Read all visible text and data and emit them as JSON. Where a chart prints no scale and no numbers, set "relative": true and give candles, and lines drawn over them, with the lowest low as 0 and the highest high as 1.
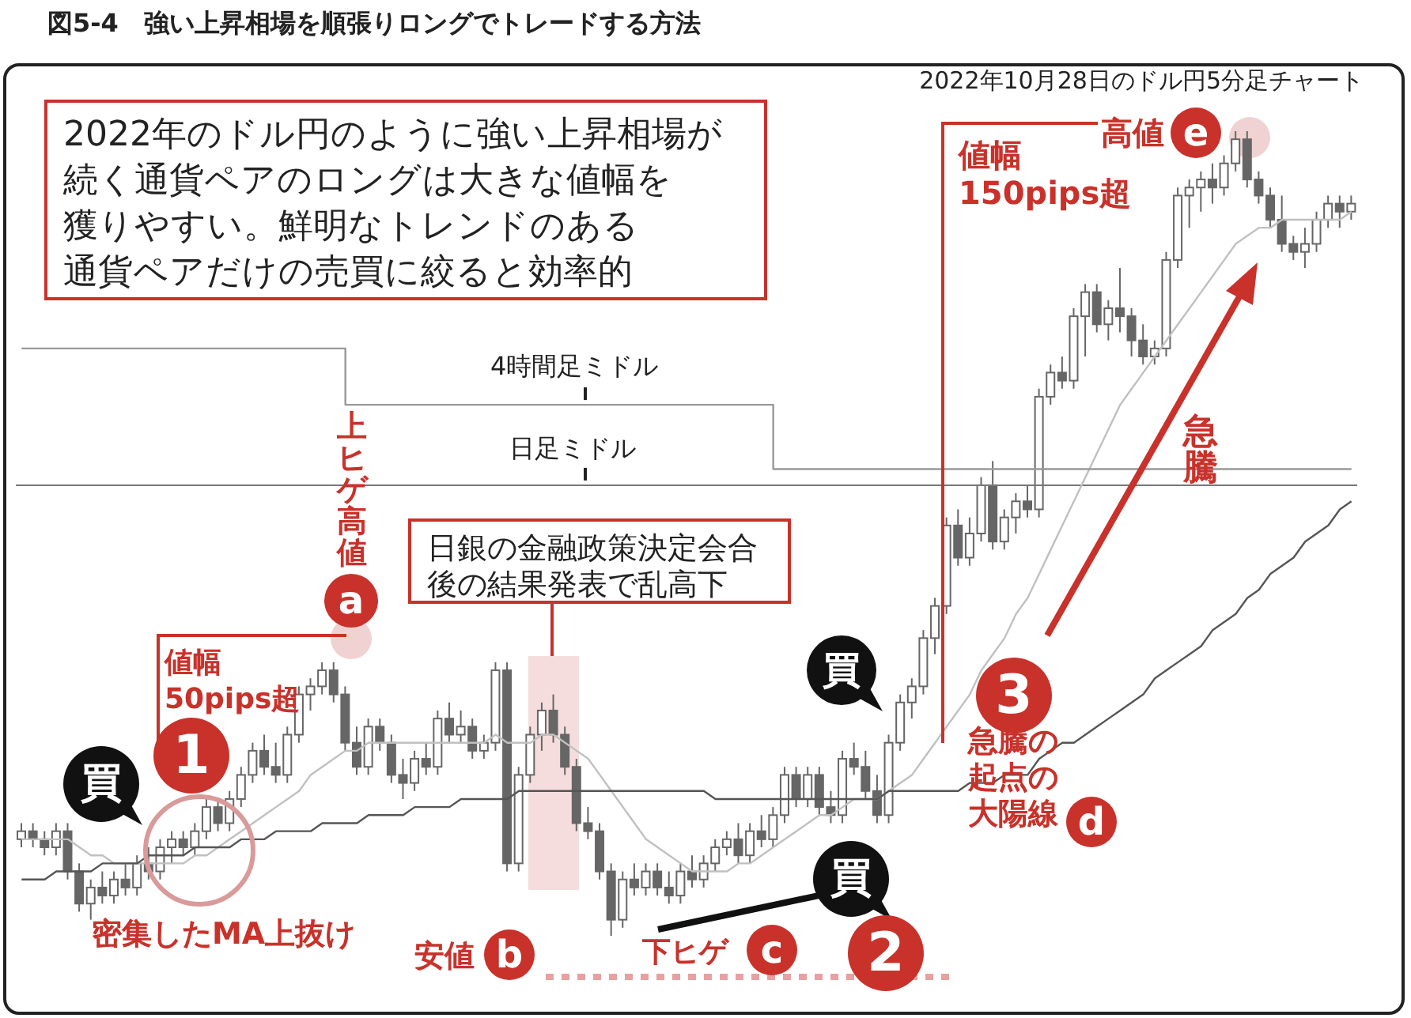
{
  "chart_data": {
    "type": "candlestick",
    "relative": true,
    "title": "図5-4　強い上昇相場を順張りロングでトレードする方法",
    "subtitle": "2022年10月28日のドル円5分足チャート",
    "color": "#666666",
    "categories": [
      null,
      null,
      null,
      null,
      null,
      null,
      null,
      null,
      null,
      null,
      null,
      null,
      null,
      null,
      null,
      null,
      null,
      null,
      null,
      null,
      null,
      null,
      null,
      null,
      null,
      null,
      null,
      null,
      null,
      null,
      null,
      null,
      null,
      null,
      null,
      null,
      null,
      null,
      null,
      null,
      null,
      null,
      null,
      null,
      null,
      null,
      null,
      null,
      null,
      null,
      null,
      null,
      null,
      null,
      null,
      null,
      null,
      null,
      null,
      null,
      null,
      null,
      null,
      null,
      null,
      null,
      null,
      null,
      null,
      null,
      null,
      null,
      null,
      null,
      null,
      null,
      null,
      null,
      null,
      null,
      null,
      null,
      null,
      null,
      null,
      null,
      null,
      null,
      null,
      null,
      null,
      null,
      null,
      null,
      null,
      null,
      null,
      null,
      null,
      null,
      null,
      null,
      null,
      null,
      null,
      null,
      null,
      null,
      null,
      null,
      null,
      null,
      null,
      null,
      null,
      null
    ],
    "ohlc": [
      [
        0.12,
        0.14,
        0.11,
        0.13
      ],
      [
        0.13,
        0.14,
        0.11,
        0.12
      ],
      [
        0.12,
        0.13,
        0.1,
        0.11
      ],
      [
        0.11,
        0.14,
        0.1,
        0.13
      ],
      [
        0.13,
        0.14,
        0.07,
        0.08
      ],
      [
        0.08,
        0.09,
        0.03,
        0.04
      ],
      [
        0.04,
        0.07,
        0.02,
        0.06
      ],
      [
        0.06,
        0.08,
        0.04,
        0.05
      ],
      [
        0.05,
        0.08,
        0.04,
        0.07
      ],
      [
        0.07,
        0.09,
        0.05,
        0.06
      ],
      [
        0.06,
        0.1,
        0.05,
        0.09
      ],
      [
        0.09,
        0.11,
        0.07,
        0.08
      ],
      [
        0.08,
        0.12,
        0.07,
        0.11
      ],
      [
        0.11,
        0.13,
        0.09,
        0.12
      ],
      [
        0.12,
        0.13,
        0.1,
        0.11
      ],
      [
        0.11,
        0.14,
        0.1,
        0.13
      ],
      [
        0.13,
        0.17,
        0.12,
        0.16
      ],
      [
        0.16,
        0.17,
        0.13,
        0.14
      ],
      [
        0.14,
        0.18,
        0.13,
        0.17
      ],
      [
        0.17,
        0.21,
        0.16,
        0.2
      ],
      [
        0.2,
        0.24,
        0.19,
        0.23
      ],
      [
        0.23,
        0.25,
        0.2,
        0.21
      ],
      [
        0.21,
        0.24,
        0.19,
        0.2
      ],
      [
        0.2,
        0.26,
        0.19,
        0.25
      ],
      [
        0.25,
        0.31,
        0.24,
        0.3
      ],
      [
        0.3,
        0.32,
        0.28,
        0.31
      ],
      [
        0.31,
        0.34,
        0.3,
        0.33
      ],
      [
        0.33,
        0.34,
        0.29,
        0.3
      ],
      [
        0.3,
        0.31,
        0.23,
        0.24
      ],
      [
        0.24,
        0.26,
        0.2,
        0.21
      ],
      [
        0.21,
        0.27,
        0.2,
        0.26
      ],
      [
        0.26,
        0.27,
        0.23,
        0.24
      ],
      [
        0.24,
        0.25,
        0.19,
        0.2
      ],
      [
        0.2,
        0.22,
        0.17,
        0.19
      ],
      [
        0.19,
        0.23,
        0.18,
        0.22
      ],
      [
        0.22,
        0.24,
        0.2,
        0.21
      ],
      [
        0.21,
        0.28,
        0.2,
        0.27
      ],
      [
        0.27,
        0.29,
        0.24,
        0.25
      ],
      [
        0.25,
        0.28,
        0.24,
        0.26
      ],
      [
        0.26,
        0.27,
        0.22,
        0.23
      ],
      [
        0.23,
        0.25,
        0.22,
        0.24
      ],
      [
        0.24,
        0.34,
        0.23,
        0.33
      ],
      [
        0.33,
        0.34,
        0.08,
        0.09
      ],
      [
        0.09,
        0.21,
        0.08,
        0.2
      ],
      [
        0.2,
        0.26,
        0.19,
        0.25
      ],
      [
        0.25,
        0.29,
        0.23,
        0.28
      ],
      [
        0.28,
        0.3,
        0.24,
        0.25
      ],
      [
        0.25,
        0.26,
        0.2,
        0.21
      ],
      [
        0.21,
        0.22,
        0.13,
        0.14
      ],
      [
        0.14,
        0.16,
        0.12,
        0.13
      ],
      [
        0.13,
        0.14,
        0.07,
        0.08
      ],
      [
        0.08,
        0.09,
        0.0,
        0.02
      ],
      [
        0.02,
        0.08,
        0.01,
        0.07
      ],
      [
        0.07,
        0.09,
        0.05,
        0.06
      ],
      [
        0.06,
        0.09,
        0.05,
        0.08
      ],
      [
        0.08,
        0.09,
        0.05,
        0.06
      ],
      [
        0.06,
        0.08,
        0.04,
        0.05
      ],
      [
        0.05,
        0.09,
        0.04,
        0.08
      ],
      [
        0.08,
        0.1,
        0.06,
        0.07
      ],
      [
        0.07,
        0.1,
        0.06,
        0.09
      ],
      [
        0.09,
        0.12,
        0.08,
        0.11
      ],
      [
        0.11,
        0.13,
        0.1,
        0.12
      ],
      [
        0.12,
        0.14,
        0.09,
        0.1
      ],
      [
        0.1,
        0.14,
        0.09,
        0.13
      ],
      [
        0.13,
        0.15,
        0.11,
        0.12
      ],
      [
        0.12,
        0.16,
        0.11,
        0.15
      ],
      [
        0.15,
        0.21,
        0.14,
        0.2
      ],
      [
        0.2,
        0.21,
        0.16,
        0.17
      ],
      [
        0.17,
        0.21,
        0.16,
        0.2
      ],
      [
        0.2,
        0.21,
        0.15,
        0.16
      ],
      [
        0.16,
        0.18,
        0.14,
        0.15
      ],
      [
        0.15,
        0.23,
        0.14,
        0.22
      ],
      [
        0.22,
        0.24,
        0.2,
        0.21
      ],
      [
        0.21,
        0.23,
        0.17,
        0.18
      ],
      [
        0.18,
        0.2,
        0.14,
        0.15
      ],
      [
        0.15,
        0.25,
        0.14,
        0.24
      ],
      [
        0.24,
        0.3,
        0.23,
        0.29
      ],
      [
        0.29,
        0.32,
        0.27,
        0.31
      ],
      [
        0.31,
        0.38,
        0.3,
        0.37
      ],
      [
        0.37,
        0.42,
        0.35,
        0.41
      ],
      [
        0.41,
        0.52,
        0.4,
        0.51
      ],
      [
        0.51,
        0.53,
        0.46,
        0.47
      ],
      [
        0.47,
        0.52,
        0.46,
        0.5
      ],
      [
        0.5,
        0.57,
        0.49,
        0.56
      ],
      [
        0.56,
        0.59,
        0.48,
        0.49
      ],
      [
        0.49,
        0.53,
        0.48,
        0.52
      ],
      [
        0.52,
        0.55,
        0.5,
        0.54
      ],
      [
        0.54,
        0.56,
        0.52,
        0.53
      ],
      [
        0.53,
        0.68,
        0.52,
        0.67
      ],
      [
        0.67,
        0.71,
        0.66,
        0.7
      ],
      [
        0.7,
        0.72,
        0.68,
        0.69
      ],
      [
        0.69,
        0.78,
        0.68,
        0.77
      ],
      [
        0.77,
        0.81,
        0.72,
        0.8
      ],
      [
        0.8,
        0.81,
        0.75,
        0.76
      ],
      [
        0.76,
        0.79,
        0.74,
        0.78
      ],
      [
        0.78,
        0.83,
        0.75,
        0.77
      ],
      [
        0.77,
        0.78,
        0.72,
        0.74
      ],
      [
        0.74,
        0.76,
        0.71,
        0.72
      ],
      [
        0.72,
        0.74,
        0.71,
        0.73
      ],
      [
        0.73,
        0.85,
        0.72,
        0.84
      ],
      [
        0.84,
        0.93,
        0.83,
        0.92
      ],
      [
        0.92,
        0.94,
        0.88,
        0.93
      ],
      [
        0.93,
        0.95,
        0.9,
        0.94
      ],
      [
        0.94,
        0.96,
        0.91,
        0.93
      ],
      [
        0.93,
        0.97,
        0.92,
        0.96
      ],
      [
        0.96,
        1.0,
        0.95,
        0.99
      ],
      [
        0.99,
        1.0,
        0.93,
        0.94
      ],
      [
        0.94,
        0.95,
        0.91,
        0.92
      ],
      [
        0.92,
        0.93,
        0.88,
        0.89
      ],
      [
        0.89,
        0.92,
        0.85,
        0.86
      ],
      [
        0.86,
        0.87,
        0.84,
        0.85
      ],
      [
        0.85,
        0.88,
        0.83,
        0.86
      ],
      [
        0.86,
        0.9,
        0.85,
        0.89
      ],
      [
        0.89,
        0.92,
        0.88,
        0.91
      ],
      [
        0.91,
        0.92,
        0.88,
        0.9
      ],
      [
        0.9,
        0.92,
        0.89,
        0.91
      ]
    ],
    "series": [
      {
        "type": "line",
        "color": "#c0c0c0",
        "values": [
          0.12,
          0.12,
          0.12,
          0.12,
          0.12,
          0.11,
          0.1,
          0.1,
          0.09,
          0.09,
          0.09,
          0.09,
          0.09,
          0.09,
          0.09,
          0.1,
          0.1,
          0.11,
          0.12,
          0.13,
          0.14,
          0.15,
          0.16,
          0.17,
          0.18,
          0.2,
          0.21,
          0.22,
          0.23,
          0.23,
          0.24,
          0.24,
          0.24,
          0.24,
          0.24,
          0.24,
          0.24,
          0.24,
          0.24,
          0.24,
          0.24,
          0.25,
          0.24,
          0.24,
          0.24,
          0.25,
          0.25,
          0.24,
          0.23,
          0.22,
          0.2,
          0.18,
          0.16,
          0.14,
          0.12,
          0.11,
          0.1,
          0.09,
          0.08,
          0.08,
          0.08,
          0.08,
          0.09,
          0.09,
          0.1,
          0.11,
          0.12,
          0.13,
          0.14,
          0.15,
          0.15,
          0.16,
          0.17,
          0.17,
          0.17,
          0.18,
          0.19,
          0.2,
          0.22,
          0.24,
          0.26,
          0.28,
          0.3,
          0.33,
          0.35,
          0.37,
          0.4,
          0.42,
          0.45,
          0.48,
          0.51,
          0.54,
          0.57,
          0.6,
          0.63,
          0.66,
          0.68,
          0.7,
          0.72,
          0.74,
          0.76,
          0.78,
          0.8,
          0.82,
          0.84,
          0.86,
          0.87,
          0.88,
          0.88,
          0.89,
          0.89,
          0.89,
          0.89,
          0.89,
          0.89,
          0.9
        ]
      },
      {
        "type": "line",
        "color": "#555555",
        "values": [
          0.07,
          0.07,
          0.07,
          0.08,
          0.08,
          0.08,
          0.08,
          0.09,
          0.09,
          0.09,
          0.09,
          0.1,
          0.1,
          0.1,
          0.1,
          0.11,
          0.11,
          0.11,
          0.11,
          0.12,
          0.12,
          0.12,
          0.13,
          0.13,
          0.13,
          0.13,
          0.14,
          0.14,
          0.14,
          0.14,
          0.15,
          0.15,
          0.15,
          0.15,
          0.16,
          0.16,
          0.16,
          0.16,
          0.17,
          0.17,
          0.17,
          0.17,
          0.17,
          0.18,
          0.18,
          0.18,
          0.18,
          0.18,
          0.18,
          0.18,
          0.18,
          0.18,
          0.18,
          0.18,
          0.18,
          0.18,
          0.18,
          0.18,
          0.18,
          0.18,
          0.17,
          0.17,
          0.17,
          0.17,
          0.17,
          0.17,
          0.17,
          0.17,
          0.17,
          0.17,
          0.17,
          0.17,
          0.17,
          0.17,
          0.17,
          0.18,
          0.18,
          0.18,
          0.18,
          0.18,
          0.18,
          0.18,
          0.19,
          0.19,
          0.19,
          0.2,
          0.2,
          0.2,
          0.22,
          0.23,
          0.24,
          0.24,
          0.25,
          0.26,
          0.27,
          0.28,
          0.29,
          0.3,
          0.32,
          0.33,
          0.34,
          0.35,
          0.36,
          0.38,
          0.39,
          0.4,
          0.42,
          0.43,
          0.45,
          0.46,
          0.47,
          0.49,
          0.5,
          0.51,
          0.53,
          0.54
        ]
      },
      {
        "type": "step",
        "name": "4時間足ミドル",
        "color": "#999999",
        "values": [
          0.73,
          0.73,
          0.73,
          0.73,
          0.73,
          0.73,
          0.73,
          0.73,
          0.73,
          0.73,
          0.73,
          0.73,
          0.73,
          0.73,
          0.73,
          0.73,
          0.73,
          0.73,
          0.73,
          0.73,
          0.73,
          0.73,
          0.73,
          0.73,
          0.73,
          0.73,
          0.73,
          0.73,
          0.66,
          0.66,
          0.66,
          0.66,
          0.66,
          0.66,
          0.66,
          0.66,
          0.66,
          0.66,
          0.66,
          0.66,
          0.66,
          0.66,
          0.66,
          0.66,
          0.66,
          0.66,
          0.66,
          0.66,
          0.66,
          0.66,
          0.66,
          0.66,
          0.66,
          0.66,
          0.66,
          0.66,
          0.66,
          0.66,
          0.66,
          0.66,
          0.66,
          0.66,
          0.66,
          0.66,
          0.66,
          0.58,
          0.58,
          0.58,
          0.58,
          0.58,
          0.58,
          0.58,
          0.58,
          0.58,
          0.58,
          0.58,
          0.58,
          0.58,
          0.58,
          0.58,
          0.58,
          0.58,
          0.58,
          0.58,
          0.58,
          0.58,
          0.58,
          0.58,
          0.58,
          0.58,
          0.58,
          0.58,
          0.58,
          0.58,
          0.58,
          0.58,
          0.58,
          0.58,
          0.58,
          0.58,
          0.58,
          0.58,
          0.58,
          0.58,
          0.58,
          0.58,
          0.58,
          0.58,
          0.58,
          0.58,
          0.58,
          0.58,
          0.58,
          0.58,
          0.58,
          0.58
        ]
      }
    ],
    "ref_lines": [
      {
        "axis": "y",
        "value": 0.56,
        "label": "日足ミドル",
        "color": "#777777"
      }
    ],
    "annotations": [
      "2022年のドル円のように強い上昇相場が続く通貨ペアのロングは大きな値幅を獲りやすい。鮮明なトレンドのある通貨ペアだけの売買に絞ると効率的",
      "上ヒゲ高値",
      "a",
      "値幅50pips超",
      "1",
      "買",
      "密集したMA上抜け",
      "日銀の金融政策決定会合後の結果発表で乱高下",
      "安値",
      "b",
      "下ヒゲ",
      "c",
      "2",
      "買",
      "買",
      "3",
      "急騰の起点の大陽線",
      "d",
      "値幅150pips超",
      "高値",
      "e",
      "急騰"
    ]
  }
}
